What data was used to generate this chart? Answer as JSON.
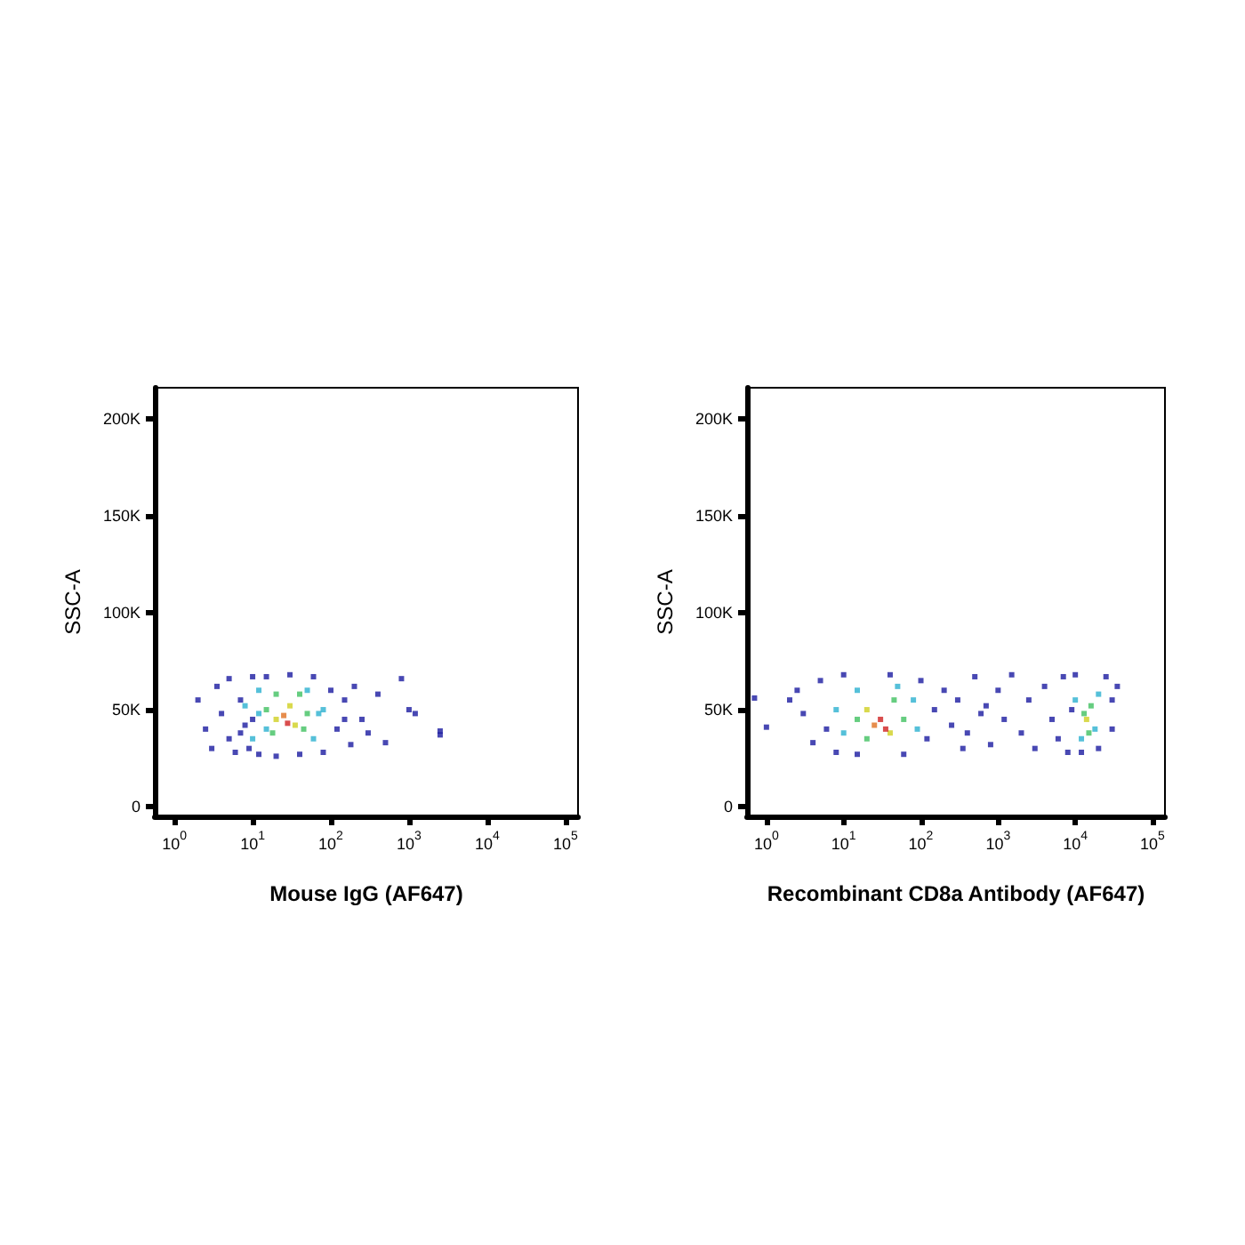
{
  "chart_data": [
    {
      "type": "scatter",
      "xlabel": "Mouse IgG (AF647)",
      "ylabel": "SSC-A",
      "log": "x",
      "marker": "square",
      "xlim": [
        0.56,
        145000
      ],
      "ylim": [
        -5000,
        216000
      ],
      "xticks": [
        {
          "value": 1,
          "label": "10$^{0}$"
        },
        {
          "value": 10,
          "label": "10$^{1}$"
        },
        {
          "value": 100,
          "label": "10$^{2}$"
        },
        {
          "value": 1000,
          "label": "10$^{3}$"
        },
        {
          "value": 10000,
          "label": "10$^{4}$"
        },
        {
          "value": 100000,
          "label": "10$^{5}$"
        }
      ],
      "yticks": [
        0,
        {
          "value": 50000,
          "label": "50K"
        },
        {
          "value": 100000,
          "label": "100K"
        },
        {
          "value": 150000,
          "label": "150K"
        },
        {
          "value": 200000,
          "label": "200K"
        }
      ],
      "series": [
        {
          "x": [
            2,
            2.5,
            3,
            3.5,
            4,
            5,
            5,
            6,
            7,
            8,
            9,
            10,
            12,
            15,
            20,
            30,
            40,
            60,
            80,
            100,
            120,
            150,
            180,
            200,
            250,
            300,
            400,
            500,
            800,
            1000,
            1200,
            2500,
            2500,
            7,
            10,
            150,
            8,
            10,
            12,
            15,
            50,
            60,
            70,
            12,
            80,
            15,
            18,
            20,
            40,
            45,
            50,
            20,
            30,
            35,
            25,
            28
          ],
          "values": [
            55000,
            40000,
            30000,
            62000,
            48000,
            35000,
            66000,
            28000,
            55000,
            42000,
            30000,
            67000,
            27000,
            67000,
            26000,
            68000,
            27000,
            67000,
            28000,
            60000,
            40000,
            55000,
            32000,
            62000,
            45000,
            38000,
            58000,
            33000,
            66000,
            50000,
            48000,
            37000,
            39000,
            38000,
            45000,
            45000,
            52000,
            35000,
            60000,
            40000,
            60000,
            35000,
            48000,
            48000,
            50000,
            50000,
            38000,
            58000,
            58000,
            40000,
            48000,
            45000,
            52000,
            42000,
            47000,
            43000
          ],
          "colors": [
            "#1a1aa0",
            "#1a1aa0",
            "#1a1aa0",
            "#1a1aa0",
            "#1a1aa0",
            "#1a1aa0",
            "#1a1aa0",
            "#1a1aa0",
            "#1a1aa0",
            "#1a1aa0",
            "#1a1aa0",
            "#1a1aa0",
            "#1a1aa0",
            "#1a1aa0",
            "#1a1aa0",
            "#1a1aa0",
            "#1a1aa0",
            "#1a1aa0",
            "#1a1aa0",
            "#1a1aa0",
            "#1a1aa0",
            "#1a1aa0",
            "#1a1aa0",
            "#1a1aa0",
            "#1a1aa0",
            "#1a1aa0",
            "#1a1aa0",
            "#1a1aa0",
            "#1a1aa0",
            "#1a1aa0",
            "#1a1aa0",
            "#1a1aa0",
            "#1a1aa0",
            "#1a1aa0",
            "#1a1aa0",
            "#1a1aa0",
            "#2ab0d0",
            "#2ab0d0",
            "#2ab0d0",
            "#2ab0d0",
            "#2ab0d0",
            "#2ab0d0",
            "#2ab0d0",
            "#2ab0d0",
            "#2ab0d0",
            "#40c060",
            "#40c060",
            "#40c060",
            "#40c060",
            "#40c060",
            "#40c060",
            "#d0d020",
            "#d0d020",
            "#d0d020",
            "#e07020",
            "#d02020"
          ]
        }
      ]
    },
    {
      "type": "scatter",
      "xlabel": "Recombinant CD8a Antibody (AF647)",
      "ylabel": "SSC-A",
      "log": "x",
      "marker": "square",
      "xlim": [
        0.56,
        145000
      ],
      "ylim": [
        -5000,
        216000
      ],
      "xticks": [
        {
          "value": 1,
          "label": "10$^{0}$"
        },
        {
          "value": 10,
          "label": "10$^{1}$"
        },
        {
          "value": 100,
          "label": "10$^{2}$"
        },
        {
          "value": 1000,
          "label": "10$^{3}$"
        },
        {
          "value": 10000,
          "label": "10$^{4}$"
        },
        {
          "value": 100000,
          "label": "10$^{5}$"
        }
      ],
      "yticks": [
        0,
        {
          "value": 50000,
          "label": "50K"
        },
        {
          "value": 100000,
          "label": "100K"
        },
        {
          "value": 150000,
          "label": "150K"
        },
        {
          "value": 200000,
          "label": "200K"
        }
      ],
      "series": [
        {
          "x": [
            0.7,
            1,
            2,
            2.5,
            3,
            4,
            5,
            6,
            8,
            10,
            15,
            40,
            60,
            100,
            120,
            150,
            200,
            250,
            300,
            400,
            500,
            600,
            800,
            1000,
            1200,
            1500,
            2000,
            2500,
            3000,
            4000,
            5000,
            6000,
            7000,
            8000,
            10000,
            12000,
            20000,
            25000,
            30000,
            30000,
            35000,
            9000,
            700,
            350,
            8,
            10,
            80,
            90,
            15,
            50,
            10000,
            18000,
            20000,
            12000,
            15,
            20,
            45,
            60,
            13000,
            16000,
            15000,
            20,
            40,
            14000,
            25,
            30,
            35
          ],
          "values": [
            56000,
            41000,
            55000,
            60000,
            48000,
            33000,
            65000,
            40000,
            28000,
            68000,
            27000,
            68000,
            27000,
            65000,
            35000,
            50000,
            60000,
            42000,
            55000,
            38000,
            67000,
            48000,
            32000,
            60000,
            45000,
            68000,
            38000,
            55000,
            30000,
            62000,
            45000,
            35000,
            67000,
            28000,
            68000,
            28000,
            30000,
            67000,
            55000,
            40000,
            62000,
            50000,
            52000,
            30000,
            50000,
            38000,
            55000,
            40000,
            60000,
            62000,
            55000,
            40000,
            58000,
            35000,
            45000,
            35000,
            55000,
            45000,
            48000,
            52000,
            38000,
            50000,
            38000,
            45000,
            42000,
            45000,
            40000
          ],
          "colors": [
            "#1a1aa0",
            "#1a1aa0",
            "#1a1aa0",
            "#1a1aa0",
            "#1a1aa0",
            "#1a1aa0",
            "#1a1aa0",
            "#1a1aa0",
            "#1a1aa0",
            "#1a1aa0",
            "#1a1aa0",
            "#1a1aa0",
            "#1a1aa0",
            "#1a1aa0",
            "#1a1aa0",
            "#1a1aa0",
            "#1a1aa0",
            "#1a1aa0",
            "#1a1aa0",
            "#1a1aa0",
            "#1a1aa0",
            "#1a1aa0",
            "#1a1aa0",
            "#1a1aa0",
            "#1a1aa0",
            "#1a1aa0",
            "#1a1aa0",
            "#1a1aa0",
            "#1a1aa0",
            "#1a1aa0",
            "#1a1aa0",
            "#1a1aa0",
            "#1a1aa0",
            "#1a1aa0",
            "#1a1aa0",
            "#1a1aa0",
            "#1a1aa0",
            "#1a1aa0",
            "#1a1aa0",
            "#1a1aa0",
            "#1a1aa0",
            "#1a1aa0",
            "#1a1aa0",
            "#1a1aa0",
            "#2ab0d0",
            "#2ab0d0",
            "#2ab0d0",
            "#2ab0d0",
            "#2ab0d0",
            "#2ab0d0",
            "#2ab0d0",
            "#2ab0d0",
            "#2ab0d0",
            "#2ab0d0",
            "#40c060",
            "#40c060",
            "#40c060",
            "#40c060",
            "#40c060",
            "#40c060",
            "#40c060",
            "#d0d020",
            "#d0d020",
            "#d0d020",
            "#e07020",
            "#d02020",
            "#d02020"
          ]
        }
      ]
    }
  ]
}
